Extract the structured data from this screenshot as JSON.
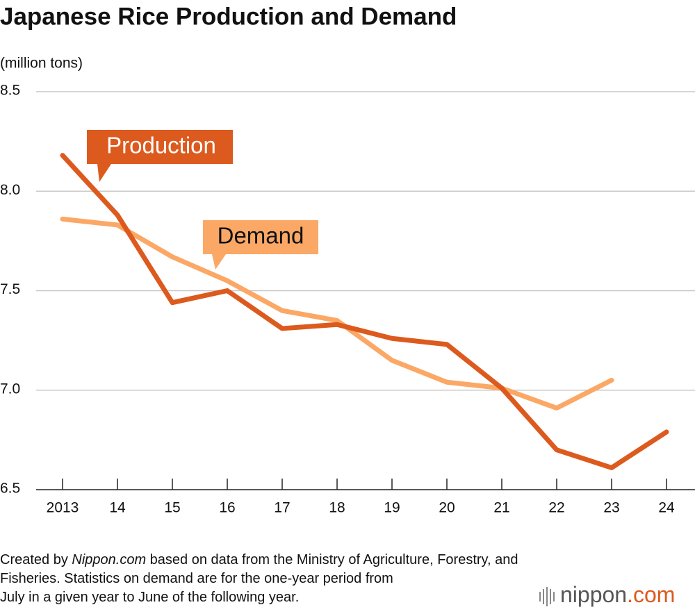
{
  "chart_data": {
    "type": "line",
    "title": "Japanese Rice Production and Demand",
    "y_label": "(million tons)",
    "categories": [
      "2013",
      "14",
      "15",
      "16",
      "17",
      "18",
      "19",
      "20",
      "21",
      "22",
      "23",
      "24"
    ],
    "series": [
      {
        "name": "Production",
        "color": "#dd5a1e",
        "values": [
          8.18,
          7.88,
          7.44,
          7.5,
          7.31,
          7.33,
          7.26,
          7.23,
          7.01,
          6.7,
          6.61,
          6.79
        ]
      },
      {
        "name": "Demand",
        "color": "#fba866",
        "values": [
          7.86,
          7.83,
          7.67,
          7.55,
          7.4,
          7.35,
          7.15,
          7.04,
          7.01,
          6.91,
          7.05,
          null
        ]
      }
    ],
    "ylim": [
      6.5,
      8.5
    ],
    "yticks": [
      6.5,
      {
        "value": 7,
        "label": "7.0"
      },
      7.5,
      {
        "value": 8,
        "label": "8.0"
      },
      8.5
    ],
    "grid": true,
    "footnote": [
      [
        "Created by ",
        "Nippon.com",
        " based on data from the Ministry of Agriculture, Forestry, and"
      ],
      [
        "Fisheries. Statistics on demand are for the one-year period from"
      ],
      [
        "July in a given year to June of the following year."
      ]
    ],
    "logo": [
      "nippon",
      ".com"
    ]
  }
}
